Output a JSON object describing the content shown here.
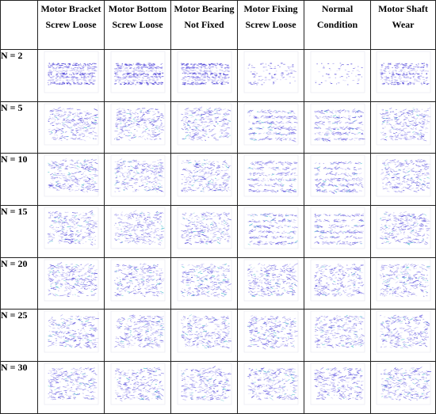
{
  "header": {
    "corner": "",
    "columns": [
      "Motor Bracket Screw Loose",
      "Motor Bottom Screw Loose",
      "Motor Bearing Not Fixed",
      "Motor Fixing Screw Loose",
      "Normal Condition",
      "Motor Shaft Wear"
    ]
  },
  "rows": [
    {
      "label": "N = 2"
    },
    {
      "label": "N = 5"
    },
    {
      "label": "N = 10"
    },
    {
      "label": "N = 15"
    },
    {
      "label": "N = 20"
    },
    {
      "label": "N = 25"
    },
    {
      "label": "N = 30"
    }
  ],
  "colors": {
    "primary": "#4a3fd6",
    "secondary": "#7a70e8",
    "accent": "#3cb6c9",
    "light": "#b7b2f2"
  }
}
